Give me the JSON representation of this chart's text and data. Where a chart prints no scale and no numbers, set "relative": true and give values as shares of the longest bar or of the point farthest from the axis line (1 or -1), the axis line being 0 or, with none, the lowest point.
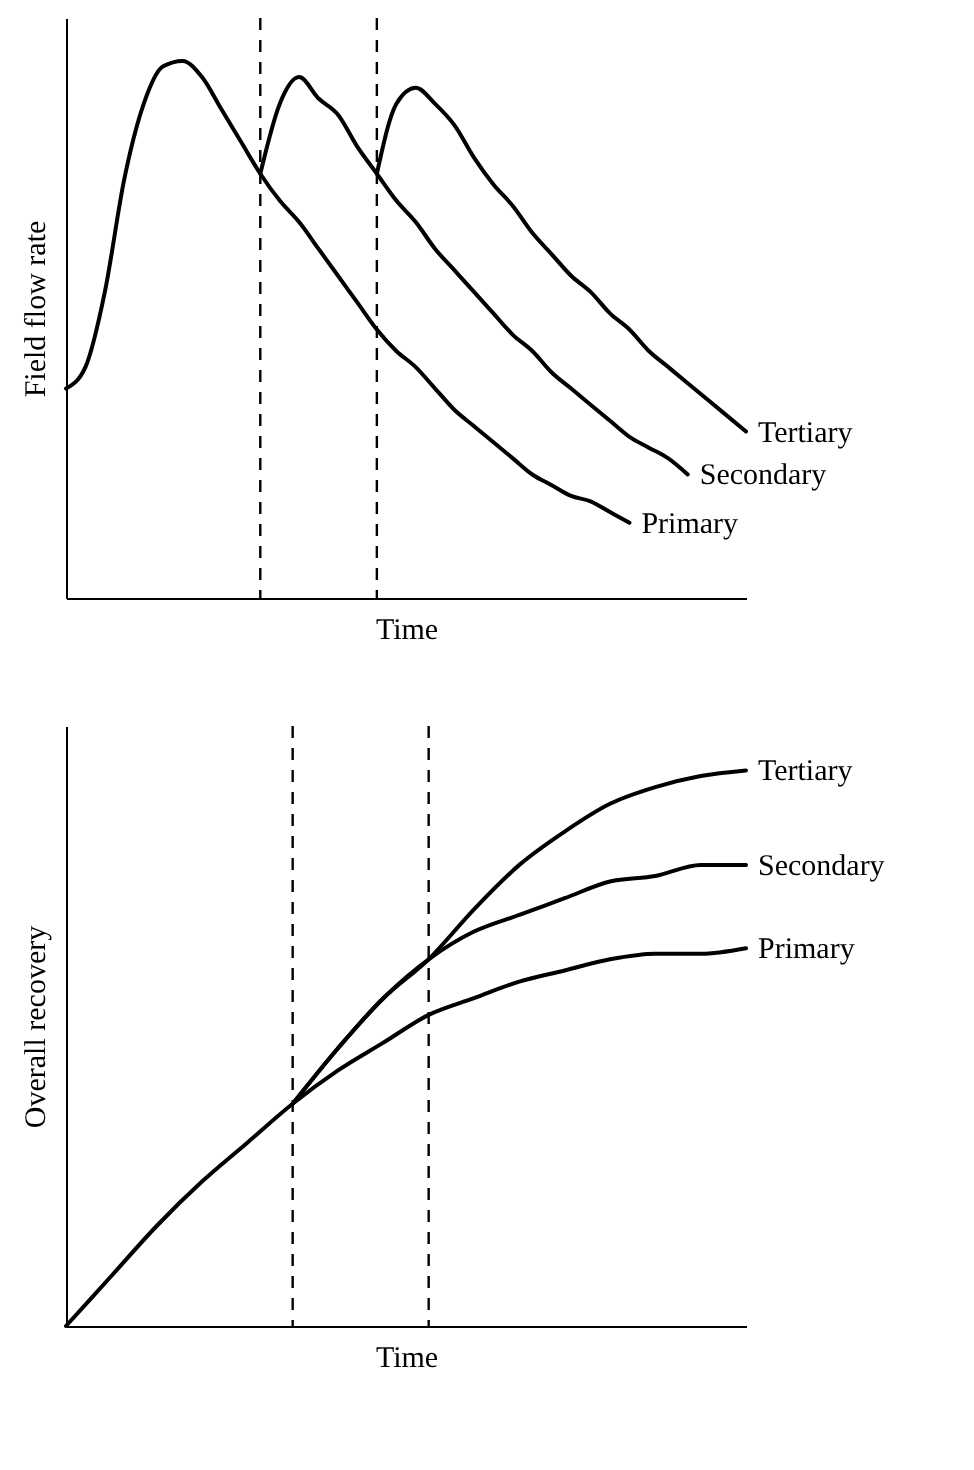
{
  "chart_data": [
    {
      "type": "line",
      "xlabel": "Time",
      "ylabel": "Field flow rate",
      "relative": true,
      "tick_labels": false,
      "grid": false,
      "legend": false,
      "line_style": "solid",
      "categories": [
        null,
        null,
        null,
        null,
        null,
        null,
        null,
        null,
        null,
        null,
        null,
        null,
        null,
        null,
        null,
        null,
        null,
        null,
        null,
        null,
        null,
        null,
        null,
        null,
        null,
        null,
        null,
        null,
        null,
        null,
        null,
        null,
        null,
        null,
        null,
        null
      ],
      "series": [
        {
          "name": "Primary",
          "color": "#000000",
          "values": [
            0.39,
            0.43,
            0.57,
            0.78,
            0.92,
            0.99,
            1,
            0.97,
            0.91,
            0.85,
            0.79,
            0.74,
            0.7,
            0.65,
            0.6,
            0.55,
            0.5,
            0.46,
            0.43,
            0.39,
            0.35,
            0.32,
            0.29,
            0.26,
            0.23,
            0.21,
            0.19,
            0.18,
            0.16,
            0.14,
            null,
            null,
            null,
            null,
            null,
            null
          ]
        },
        {
          "name": "Secondary",
          "color": "#000000",
          "values": [
            null,
            null,
            null,
            null,
            null,
            null,
            null,
            null,
            null,
            null,
            0.79,
            0.92,
            0.97,
            0.93,
            0.9,
            0.84,
            0.79,
            0.74,
            0.7,
            0.65,
            0.61,
            0.57,
            0.53,
            0.49,
            0.46,
            0.42,
            0.39,
            0.36,
            0.33,
            0.3,
            0.28,
            0.26,
            0.23,
            null,
            null,
            null
          ]
        },
        {
          "name": "Tertiary",
          "color": "#000000",
          "values": [
            null,
            null,
            null,
            null,
            null,
            null,
            null,
            null,
            null,
            null,
            null,
            null,
            null,
            null,
            null,
            null,
            0.79,
            0.92,
            0.95,
            0.92,
            0.88,
            0.82,
            0.77,
            0.73,
            0.68,
            0.64,
            0.6,
            0.57,
            0.53,
            0.5,
            0.46,
            0.43,
            0.4,
            0.37,
            0.34,
            0.31
          ]
        }
      ]
    },
    {
      "type": "line",
      "xlabel": "Time",
      "ylabel": "Overall recovery",
      "relative": true,
      "tick_labels": false,
      "grid": false,
      "legend": false,
      "line_style": "solid",
      "categories": [
        null,
        null,
        null,
        null,
        null,
        null,
        null,
        null,
        null,
        null,
        null,
        null,
        null,
        null,
        null,
        null
      ],
      "series": [
        {
          "name": "Primary",
          "color": "#000000",
          "values": [
            0,
            0.09,
            0.18,
            0.26,
            0.33,
            0.4,
            0.46,
            0.51,
            0.56,
            0.59,
            0.62,
            0.64,
            0.66,
            0.67,
            0.67,
            0.68
          ]
        },
        {
          "name": "Secondary",
          "color": "#000000",
          "values": [
            null,
            null,
            null,
            null,
            null,
            0.4,
            0.5,
            0.59,
            0.66,
            0.71,
            0.74,
            0.77,
            0.8,
            0.81,
            0.83,
            0.83
          ]
        },
        {
          "name": "Tertiary",
          "color": "#000000",
          "values": [
            null,
            null,
            null,
            null,
            null,
            0.4,
            0.5,
            0.59,
            0.66,
            0.75,
            0.83,
            0.89,
            0.94,
            0.97,
            0.99,
            1
          ]
        }
      ]
    }
  ]
}
